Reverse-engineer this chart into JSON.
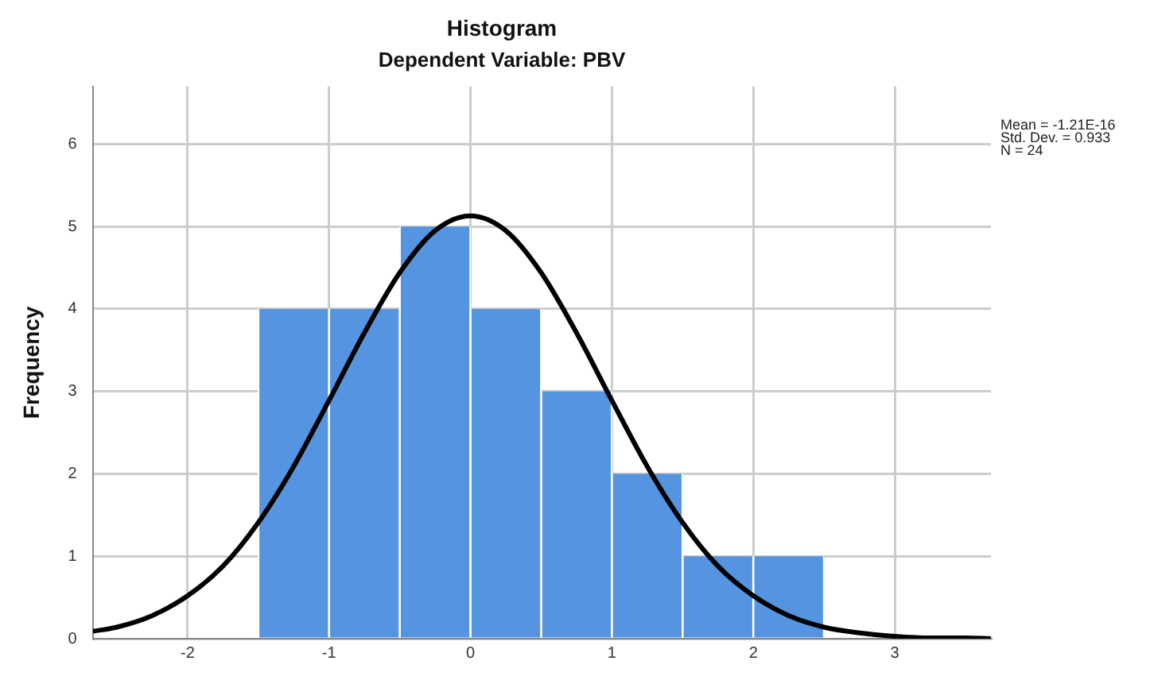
{
  "chart_data": {
    "type": "histogram",
    "title": "Histogram",
    "subtitle": "Dependent Variable: PBV",
    "ylabel": "Frequency",
    "bins": [
      -1.5,
      -1.0,
      -0.5,
      0.0,
      0.5,
      1.0,
      1.5,
      2.0,
      2.5
    ],
    "values": [
      4,
      4,
      5,
      4,
      3,
      2,
      1,
      1
    ],
    "color": "#5594e0",
    "series": [
      {
        "type": "line",
        "color": "#000000",
        "x": [
          -2.67,
          -2.5,
          -2.25,
          -2,
          -1.75,
          -1.5,
          -1.25,
          -1,
          -0.75,
          -0.5,
          -0.25,
          0,
          0.25,
          0.5,
          0.75,
          1,
          1.25,
          1.5,
          1.75,
          2,
          2.25,
          2.5,
          2.75,
          3,
          3.25,
          3.5,
          3.68
        ],
        "values": [
          0.09,
          0.14,
          0.28,
          0.52,
          0.88,
          1.41,
          2.09,
          2.89,
          3.71,
          4.44,
          4.95,
          5.13,
          4.95,
          4.44,
          3.71,
          2.89,
          2.09,
          1.41,
          0.88,
          0.52,
          0.28,
          0.14,
          0.07,
          0.03,
          0.01,
          0.01,
          0.0
        ]
      }
    ],
    "xlim": [
      -2.67,
      3.68
    ],
    "xticks": [
      -2,
      -1,
      0,
      1,
      2,
      3
    ],
    "ylim": [
      0,
      6.7
    ],
    "yticks": [
      0,
      1,
      2,
      3,
      4,
      5,
      6
    ],
    "grid": true,
    "marker": "none",
    "annotations": [
      "Mean = -1.21E-16\nStd. Dev. = 0.933\nN = 24"
    ]
  }
}
